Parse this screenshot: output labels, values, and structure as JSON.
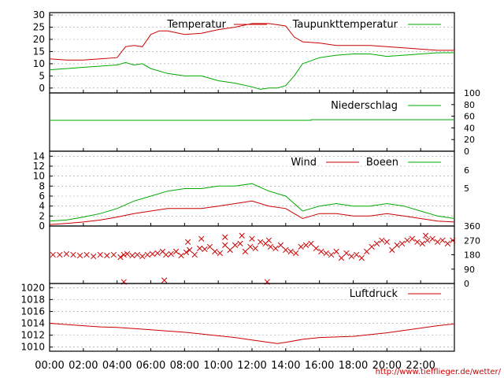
{
  "credit": "http://www.tiefflieger.de/wetter/",
  "colors": {
    "red": "#cc0000",
    "green": "#00aa00",
    "grid": "#999999",
    "axis": "#000000"
  },
  "x_axis": {
    "ticks": [
      "00:00",
      "02:00",
      "04:00",
      "06:00",
      "08:00",
      "10:00",
      "12:00",
      "14:00",
      "16:00",
      "18:00",
      "20:00",
      "22:00"
    ],
    "range": [
      0,
      24
    ]
  },
  "chart_data": [
    {
      "type": "line",
      "panel": "temperature",
      "ylim": [
        -2,
        31
      ],
      "yticks": [
        "0",
        "5",
        "10",
        "15",
        "20",
        "25",
        "30"
      ],
      "ytick_values": [
        0,
        5,
        10,
        15,
        20,
        25,
        30
      ],
      "series": [
        {
          "name": "Temperatur",
          "color": "#cc0000",
          "x": [
            0,
            1,
            2,
            3,
            4,
            4.5,
            5,
            5.5,
            6,
            6.5,
            7,
            8,
            9,
            10,
            11,
            12,
            13,
            14,
            14.5,
            15,
            16,
            17,
            18,
            19,
            20,
            21,
            22,
            23,
            24
          ],
          "y": [
            12,
            11.5,
            11.5,
            12,
            12.5,
            17,
            17.5,
            17,
            22,
            23.5,
            23.5,
            22,
            22.5,
            24,
            25,
            26.5,
            26.5,
            25.5,
            21,
            19,
            18.5,
            17.5,
            17.5,
            17.5,
            17,
            16.5,
            16,
            15.5,
            15.5
          ]
        },
        {
          "name": "Taupunkttemperatur",
          "color": "#00aa00",
          "x": [
            0,
            1,
            2,
            3,
            4,
            4.5,
            5,
            5.5,
            6,
            7,
            8,
            9,
            10,
            11,
            12,
            12.5,
            13,
            13.5,
            14,
            14.5,
            15,
            16,
            17,
            18,
            19,
            20,
            21,
            22,
            23,
            24
          ],
          "y": [
            7.5,
            8,
            8.5,
            9,
            9.5,
            10.5,
            9.5,
            10,
            8,
            6,
            5,
            5,
            3,
            2,
            0.5,
            -0.5,
            0,
            0,
            1,
            5,
            10,
            12.5,
            13.5,
            14,
            14,
            13,
            13.5,
            14,
            14.5,
            14.5
          ]
        }
      ]
    },
    {
      "type": "line",
      "panel": "precipitation",
      "ylim": [
        0,
        100
      ],
      "yticks": [
        "100",
        "80",
        "60",
        "40",
        "20",
        "0"
      ],
      "ytick_values": [
        100,
        80,
        60,
        40,
        20,
        0
      ],
      "series": [
        {
          "name": "Niederschlag",
          "color": "#00aa00",
          "x": [
            0,
            15.5,
            15.5,
            24
          ],
          "y": [
            53,
            53,
            54,
            54
          ]
        }
      ]
    },
    {
      "type": "line",
      "panel": "wind",
      "ylim": [
        0,
        15
      ],
      "yticks": [
        "0",
        "2",
        "4",
        "6",
        "8",
        "10",
        "12",
        "14"
      ],
      "ytick_values": [
        0,
        2,
        4,
        6,
        8,
        10,
        12,
        14
      ],
      "right_ticks": [
        "6",
        "5"
      ],
      "right_tick_values": [
        11.2,
        7.6
      ],
      "series": [
        {
          "name": "Wind",
          "color": "#cc0000",
          "x": [
            0,
            1,
            2,
            3,
            4,
            5,
            6,
            7,
            8,
            9,
            10,
            11,
            12,
            13,
            14,
            15,
            16,
            17,
            18,
            19,
            20,
            21,
            22,
            23,
            24
          ],
          "y": [
            0.3,
            0.5,
            0.8,
            1.2,
            1.8,
            2.5,
            3,
            3.5,
            3.5,
            3.5,
            4,
            4.5,
            5,
            4,
            3.5,
            1.5,
            2.5,
            2.5,
            2,
            2,
            2.5,
            2,
            1.5,
            1,
            0.8
          ]
        },
        {
          "name": "Boeen",
          "color": "#00aa00",
          "x": [
            0,
            1,
            2,
            3,
            4,
            5,
            6,
            7,
            8,
            9,
            10,
            11,
            12,
            13,
            14,
            15,
            16,
            17,
            18,
            19,
            20,
            21,
            22,
            23,
            24
          ],
          "y": [
            1,
            1.2,
            1.8,
            2.5,
            3.5,
            5,
            6,
            7,
            7.5,
            7.5,
            8,
            8,
            8.5,
            7,
            6,
            3,
            4,
            4.5,
            4,
            4,
            4.5,
            4,
            3,
            2,
            1.5
          ]
        }
      ]
    },
    {
      "type": "scatter",
      "panel": "wind_direction",
      "ylim": [
        0,
        360
      ],
      "yticks": [
        "360",
        "270",
        "180",
        "90",
        "0"
      ],
      "ytick_values": [
        360,
        270,
        180,
        90,
        0
      ],
      "series": [
        {
          "name": "",
          "color": "#cc0000",
          "x": [
            0.2,
            0.6,
            1.0,
            1.4,
            1.8,
            2.2,
            2.6,
            3.0,
            3.4,
            3.8,
            4.2,
            4.4,
            4.6,
            4.9,
            5.2,
            5.5,
            5.8,
            6.1,
            6.4,
            6.7,
            6.9,
            7.2,
            7.5,
            7.8,
            8.1,
            8.3,
            8.6,
            8.9,
            9.2,
            9.5,
            9.8,
            10.1,
            10.4,
            10.7,
            11.0,
            11.3,
            11.6,
            11.9,
            12.2,
            12.5,
            12.8,
            13.1,
            13.4,
            13.7,
            14.0,
            14.3,
            14.6,
            14.9,
            15.2,
            15.5,
            15.8,
            16.1,
            16.4,
            16.7,
            17.0,
            17.3,
            17.6,
            17.9,
            18.2,
            18.5,
            18.8,
            19.1,
            19.4,
            19.7,
            20.0,
            20.3,
            20.6,
            20.9,
            21.2,
            21.5,
            21.8,
            22.1,
            22.4,
            22.7,
            23.0,
            23.3,
            23.6,
            23.9,
            4.4,
            6.8,
            12.9,
            8.2,
            9.0,
            10.4,
            11.4,
            12.0,
            13.0,
            22.3
          ],
          "y": [
            180,
            180,
            185,
            180,
            175,
            180,
            170,
            180,
            175,
            180,
            165,
            180,
            185,
            175,
            180,
            170,
            180,
            185,
            190,
            200,
            180,
            185,
            200,
            175,
            195,
            210,
            180,
            220,
            215,
            230,
            200,
            190,
            240,
            210,
            240,
            250,
            200,
            230,
            220,
            260,
            250,
            230,
            220,
            240,
            210,
            200,
            190,
            230,
            240,
            250,
            220,
            200,
            190,
            180,
            200,
            160,
            190,
            170,
            180,
            160,
            200,
            230,
            250,
            270,
            260,
            210,
            240,
            250,
            270,
            280,
            260,
            250,
            270,
            280,
            260,
            270,
            250,
            270,
            10,
            20,
            10,
            260,
            280,
            290,
            300,
            280,
            270,
            300
          ]
        }
      ]
    },
    {
      "type": "line",
      "panel": "pressure",
      "ylim": [
        1009.3,
        1020.7
      ],
      "yticks": [
        "1020",
        "1018",
        "1016",
        "1014",
        "1012",
        "1010"
      ],
      "ytick_values": [
        1020,
        1018,
        1016,
        1014,
        1012,
        1010
      ],
      "series": [
        {
          "name": "Luftdruck",
          "color": "#cc0000",
          "x": [
            0,
            1,
            2,
            3,
            4,
            5,
            6,
            7,
            8,
            9,
            10,
            11,
            12,
            13,
            13.5,
            14,
            15,
            16,
            17,
            18,
            19,
            20,
            21,
            22,
            23,
            24
          ],
          "y": [
            1014,
            1013.8,
            1013.6,
            1013.4,
            1013.3,
            1013.1,
            1012.9,
            1012.7,
            1012.5,
            1012.2,
            1011.9,
            1011.6,
            1011.2,
            1010.8,
            1010.6,
            1010.8,
            1011.3,
            1011.6,
            1011.7,
            1011.8,
            1012.1,
            1012.4,
            1012.8,
            1013.2,
            1013.6,
            1013.9
          ]
        }
      ]
    }
  ]
}
